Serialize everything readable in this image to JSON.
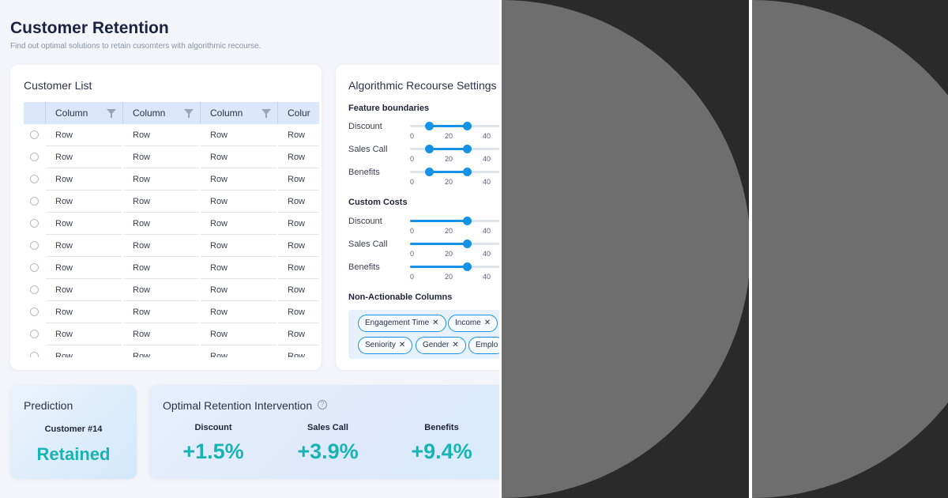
{
  "header": {
    "title": "Customer Retention",
    "subtitle": "Find out optimal solutions to retain cusomters with algorithmic recourse."
  },
  "customer_list": {
    "title": "Customer List",
    "columns": [
      "Column",
      "Column",
      "Column",
      "Colur"
    ],
    "row_cell": "Row",
    "row_count": 11
  },
  "settings": {
    "title": "Algorithmic Recourse Settings",
    "feature_boundaries": {
      "heading": "Feature boundaries",
      "items": [
        {
          "label": "Discount",
          "low": 10,
          "high": 30
        },
        {
          "label": "Sales Call",
          "low": 10,
          "high": 30
        },
        {
          "label": "Benefits",
          "low": 10,
          "high": 30
        }
      ]
    },
    "custom_costs": {
      "heading": "Custom Costs",
      "items": [
        {
          "label": "Discount",
          "value": 30
        },
        {
          "label": "Sales Call",
          "value": 30
        },
        {
          "label": "Benefits",
          "value": 30
        }
      ]
    },
    "ticks": [
      "0",
      "20",
      "40"
    ],
    "non_actionable": {
      "heading": "Non-Actionable Columns",
      "chips": [
        "Engagement Time",
        "Income",
        "Seniority",
        "Gender",
        "Emplo"
      ]
    }
  },
  "prediction": {
    "title": "Prediction",
    "customer": "Customer #14",
    "result": "Retained"
  },
  "intervention": {
    "title": "Optimal Retention Intervention",
    "help": "?",
    "metrics": [
      {
        "label": "Discount",
        "value": "+1.5%"
      },
      {
        "label": "Sales Call",
        "value": "+3.9%"
      },
      {
        "label": "Benefits",
        "value": "+9.4%"
      }
    ]
  },
  "colors": {
    "accent": "#1592e6",
    "teal": "#19b3b3",
    "panel_bg": "#2a2a2a",
    "disc": "#6e6e6e"
  }
}
